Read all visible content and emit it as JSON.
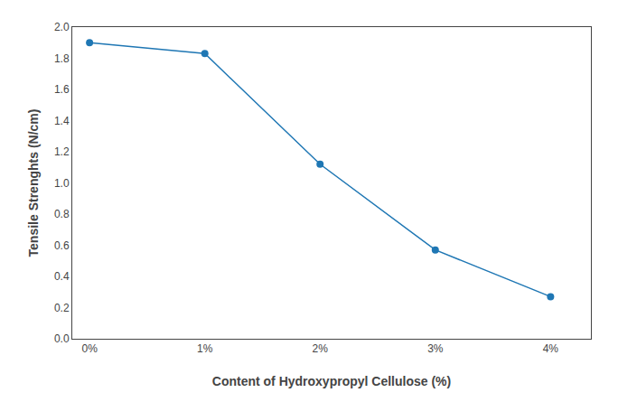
{
  "chart_data": {
    "type": "line",
    "x": [
      0,
      1,
      2,
      3,
      4
    ],
    "values": [
      1.9,
      1.83,
      1.12,
      0.57,
      0.27
    ],
    "xlabel": "Content of Hydroxypropyl Cellulose (%)",
    "ylabel": "Tensile Strenghts (N/cm)",
    "xlim": [
      -0.15,
      4.35
    ],
    "xticks": [
      {
        "value": 0,
        "label": "0%"
      },
      {
        "value": 1,
        "label": "1%"
      },
      {
        "value": 2,
        "label": "2%"
      },
      {
        "value": 3,
        "label": "3%"
      },
      {
        "value": 4,
        "label": "4%"
      }
    ],
    "ylim": [
      0.0,
      2.0
    ],
    "yticks": [
      {
        "value": 0.0,
        "label": "0.0"
      },
      0.2,
      0.4,
      0.6,
      0.8,
      {
        "value": 1.0,
        "label": "1.0"
      },
      1.2,
      1.4,
      1.6,
      1.8,
      {
        "value": 2.0,
        "label": "2.0"
      }
    ],
    "grid": false,
    "marker": "circle"
  }
}
